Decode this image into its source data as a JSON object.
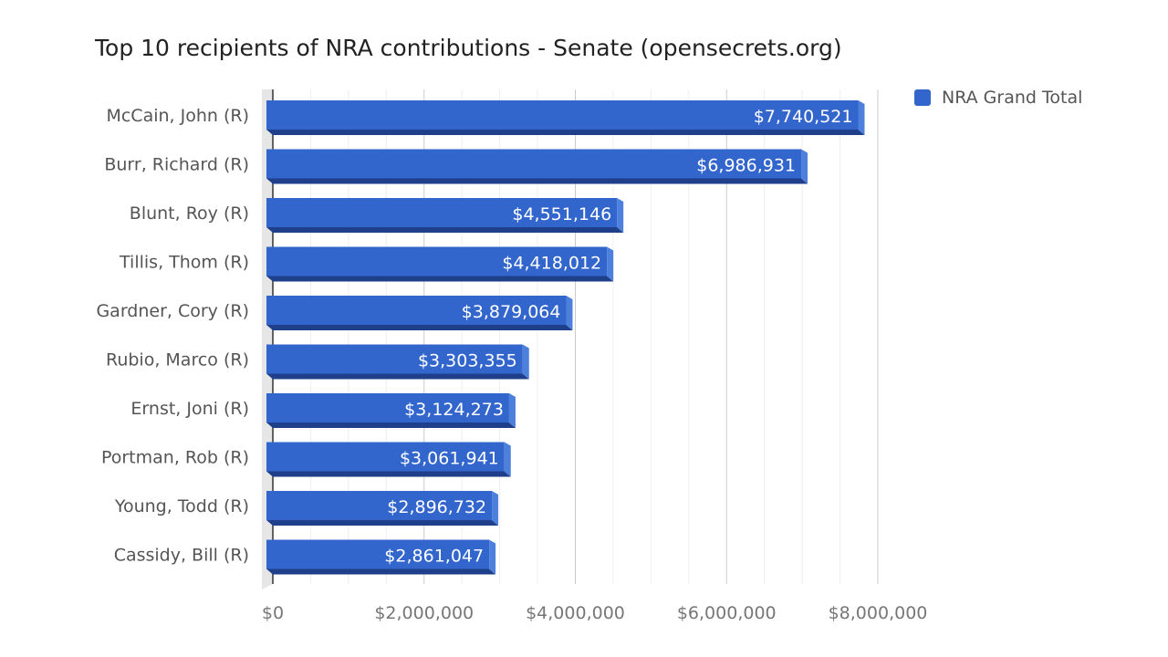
{
  "chart_data": {
    "type": "bar",
    "orientation": "horizontal",
    "title": "Top 10 recipients of NRA contributions - Senate (opensecrets.org)",
    "xlabel": "",
    "ylabel": "",
    "categories": [
      "McCain, John (R)",
      "Burr, Richard (R)",
      "Blunt, Roy (R)",
      "Tillis, Thom (R)",
      "Gardner, Cory (R)",
      "Rubio, Marco (R)",
      "Ernst, Joni (R)",
      "Portman, Rob (R)",
      "Young, Todd (R)",
      "Cassidy, Bill (R)"
    ],
    "series": [
      {
        "name": "NRA Grand Total",
        "values": [
          7740521,
          6986931,
          4551146,
          4418012,
          3879064,
          3303355,
          3124273,
          3061941,
          2896732,
          2861047
        ],
        "data_labels": [
          "$7,740,521",
          "$6,986,931",
          "$4,551,146",
          "$4,418,012",
          "$3,879,064",
          "$3,303,355",
          "$3,124,273",
          "$3,061,941",
          "$2,896,732",
          "$2,861,047"
        ]
      }
    ],
    "xlim": [
      0,
      8000000
    ],
    "x_ticks": [
      0,
      2000000,
      4000000,
      6000000,
      8000000
    ],
    "x_tick_labels": [
      "$0",
      "$2,000,000",
      "$4,000,000",
      "$6,000,000",
      "$8,000,000"
    ],
    "grid": true,
    "legend_position": "top-right",
    "colors": {
      "bar": "#3366cc",
      "bar_dark": "#1f3f8a",
      "bar_side": "#2c56b3",
      "grid": "#dddddd"
    }
  }
}
